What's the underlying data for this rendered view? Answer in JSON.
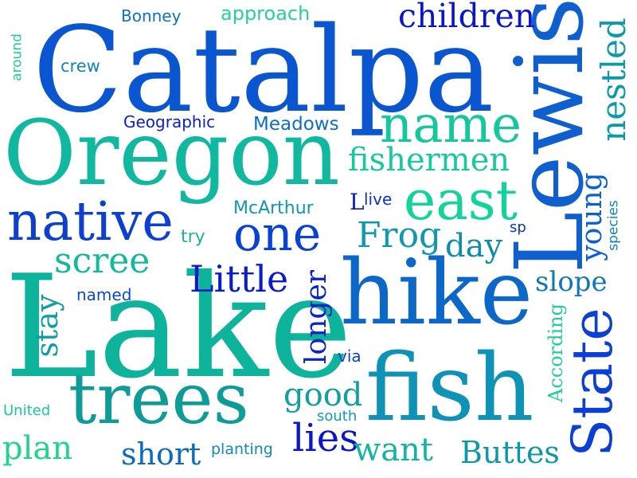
{
  "palette": {
    "dark_blue": "#0a3fd1",
    "blue": "#0b67c8",
    "teal": "#0aa597",
    "mint": "#12c9a0",
    "navy": "#0b12c8"
  },
  "words": [
    {
      "id": "catalpa",
      "text": "Catalpa",
      "color": "#0a56d0"
    },
    {
      "id": "lake",
      "text": "Lake",
      "color": "#0db39b"
    },
    {
      "id": "oregon",
      "text": "Oregon",
      "color": "#0fb89f"
    },
    {
      "id": "lewis",
      "text": "Lewis",
      "color": "#0f5fcf"
    },
    {
      "id": "hike",
      "text": "hike",
      "color": "#0b67c8"
    },
    {
      "id": "fish",
      "text": "fish",
      "color": "#0e92b5"
    },
    {
      "id": "trees",
      "text": "trees",
      "color": "#0f9c97"
    },
    {
      "id": "native",
      "text": "native",
      "color": "#0d3fd0"
    },
    {
      "id": "name",
      "text": "name",
      "color": "#15c79d"
    },
    {
      "id": "east",
      "text": "east",
      "color": "#12d49b"
    },
    {
      "id": "one",
      "text": "one",
      "color": "#0a43d3"
    },
    {
      "id": "state",
      "text": "State",
      "color": "#0c3fd6"
    },
    {
      "id": "children",
      "text": "children",
      "color": "#0a17c9"
    },
    {
      "id": "fishermen",
      "text": "fishermen",
      "color": "#18c89f"
    },
    {
      "id": "nestled",
      "text": "nestled",
      "color": "#0b9aa7"
    },
    {
      "id": "scree",
      "text": "scree",
      "color": "#13b99d"
    },
    {
      "id": "little",
      "text": "Little",
      "color": "#0b1cc9"
    },
    {
      "id": "frog",
      "text": "Frog",
      "color": "#1098ad"
    },
    {
      "id": "day",
      "text": "day",
      "color": "#108ea9"
    },
    {
      "id": "slope",
      "text": "slope",
      "color": "#1077bb"
    },
    {
      "id": "young",
      "text": "young",
      "color": "#0b61cf"
    },
    {
      "id": "longer",
      "text": "longer",
      "color": "#0a24c9"
    },
    {
      "id": "stay",
      "text": "stay",
      "color": "#0e9fa5"
    },
    {
      "id": "good",
      "text": "good",
      "color": "#11a09d"
    },
    {
      "id": "lies",
      "text": "lies",
      "color": "#0b16c6"
    },
    {
      "id": "want",
      "text": "want",
      "color": "#12b5a0"
    },
    {
      "id": "short",
      "text": "short",
      "color": "#0b6bc4"
    },
    {
      "id": "plan",
      "text": "plan",
      "color": "#1fd48f"
    },
    {
      "id": "buttes",
      "text": "Buttes",
      "color": "#0c99a7"
    },
    {
      "id": "according",
      "text": "According",
      "color": "#1fcf98"
    },
    {
      "id": "bonney",
      "text": "Bonney",
      "color": "#0b72c4"
    },
    {
      "id": "approach",
      "text": "approach",
      "color": "#24d19a"
    },
    {
      "id": "crew",
      "text": "crew",
      "color": "#0f86b6"
    },
    {
      "id": "around",
      "text": "around",
      "color": "#1cd197"
    },
    {
      "id": "geographic",
      "text": "Geographic",
      "color": "#0b20c8"
    },
    {
      "id": "meadows",
      "text": "Meadows",
      "color": "#0b6fc6"
    },
    {
      "id": "mcarthur",
      "text": "McArthur",
      "color": "#1098ae"
    },
    {
      "id": "l",
      "text": "L",
      "color": "#0b1bc9"
    },
    {
      "id": "live",
      "text": "live",
      "color": "#0a32cc"
    },
    {
      "id": "sp",
      "text": "sp",
      "color": "#0b36cc"
    },
    {
      "id": "species",
      "text": "species",
      "color": "#0e86b7"
    },
    {
      "id": "try",
      "text": "try",
      "color": "#1ab39f"
    },
    {
      "id": "named",
      "text": "named",
      "color": "#0b4bca"
    },
    {
      "id": "via",
      "text": "via",
      "color": "#0b43c8"
    },
    {
      "id": "united",
      "text": "United",
      "color": "#18c99b"
    },
    {
      "id": "south",
      "text": "south",
      "color": "#0f9cab"
    },
    {
      "id": "planting",
      "text": "planting",
      "color": "#0e8ab4"
    }
  ]
}
